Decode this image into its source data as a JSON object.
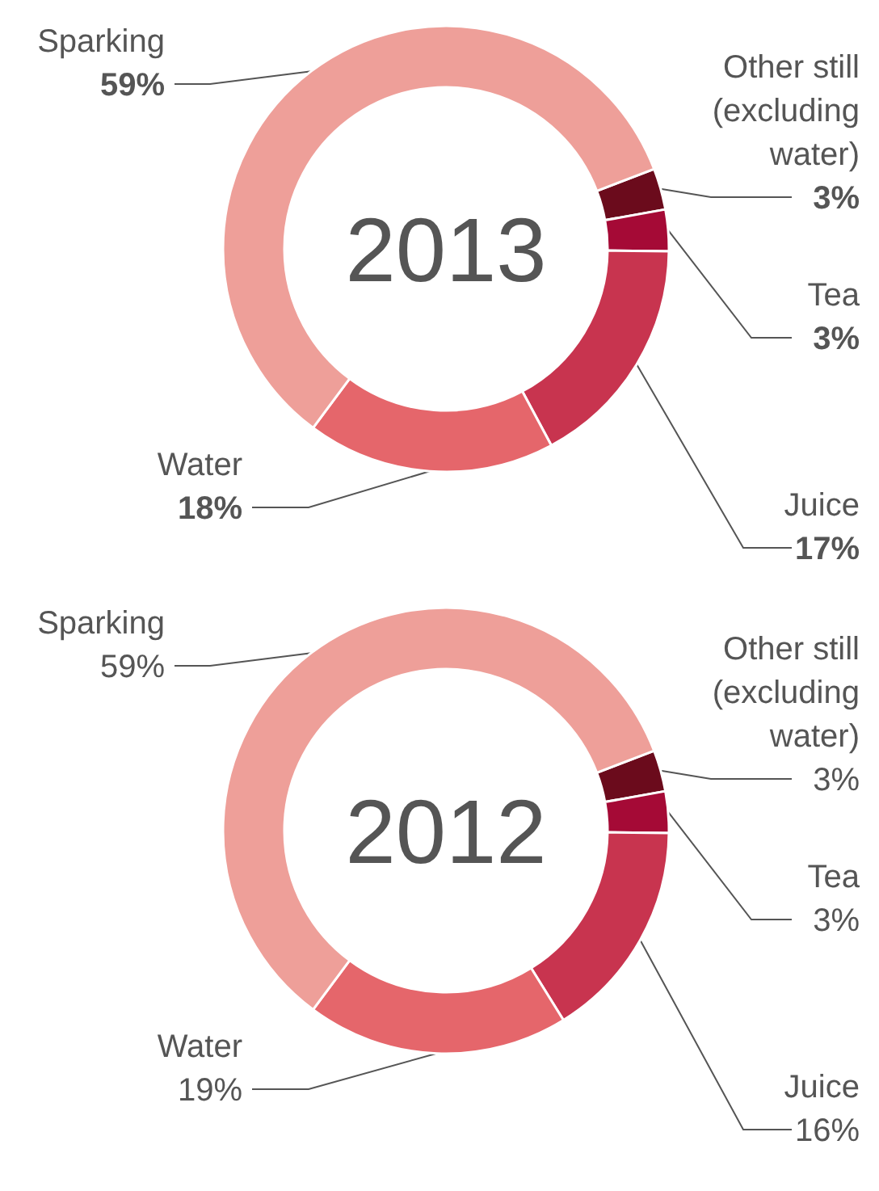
{
  "chart_data": [
    {
      "type": "donut",
      "title": "2013",
      "categories": [
        "Other still (excluding water)",
        "Tea",
        "Juice",
        "Water",
        "Sparking"
      ],
      "values": [
        3,
        3,
        17,
        18,
        59
      ],
      "value_labels": [
        "3%",
        "3%",
        "17%",
        "18%",
        "59%"
      ],
      "colors": [
        "#6b0b1c",
        "#a50a36",
        "#c8344f",
        "#e5666b",
        "#ee9f99"
      ]
    },
    {
      "type": "donut",
      "title": "2012",
      "categories": [
        "Other still (excluding water)",
        "Tea",
        "Juice",
        "Water",
        "Sparking"
      ],
      "values": [
        3,
        3,
        16,
        19,
        59
      ],
      "value_labels": [
        "3%",
        "3%",
        "16%",
        "19%",
        "59%"
      ],
      "colors": [
        "#6b0b1c",
        "#a50a36",
        "#c8344f",
        "#e5666b",
        "#ee9f99"
      ]
    }
  ]
}
